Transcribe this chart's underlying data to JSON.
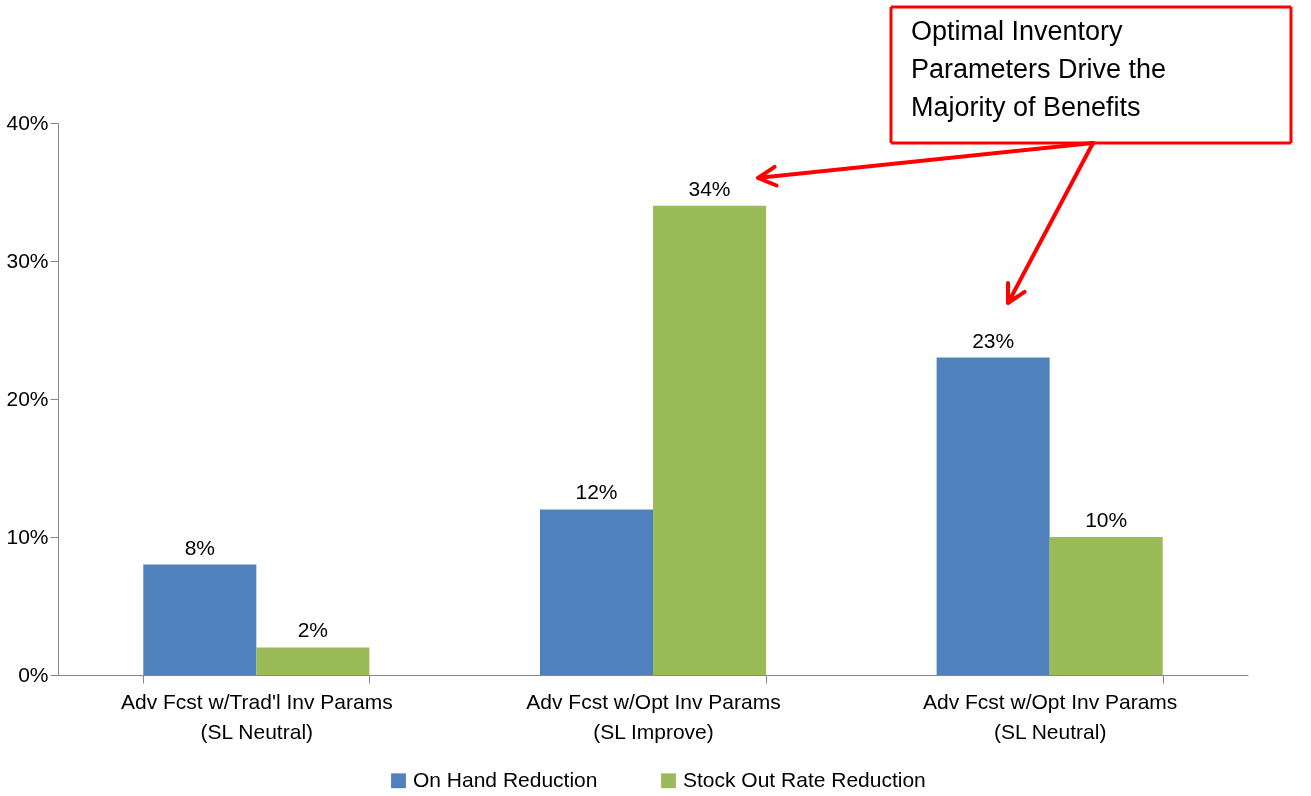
{
  "chart_data": {
    "type": "bar",
    "categories": [
      "Adv Fcst w/Trad'l Inv Params (SL Neutral)",
      "Adv Fcst w/Opt Inv Params (SL Improve)",
      "Adv Fcst w/Opt Inv Params (SL Neutral)"
    ],
    "series": [
      {
        "name": "On Hand Reduction",
        "color": "#4f81bd",
        "values": [
          8,
          12,
          23
        ],
        "value_labels": [
          "8%",
          "12%",
          "23%"
        ]
      },
      {
        "name": "Stock Out Rate Reduction",
        "color": "#9bbb59",
        "values": [
          2,
          34,
          10
        ],
        "value_labels": [
          "2%",
          "34%",
          "10%"
        ]
      }
    ],
    "ylim": [
      0,
      40
    ],
    "yticks": [
      {
        "value": 0,
        "label": "0%"
      },
      {
        "value": 10,
        "label": "10%"
      },
      {
        "value": 20,
        "label": "20%"
      },
      {
        "value": 30,
        "label": "30%"
      },
      {
        "value": 40,
        "label": "40%"
      }
    ],
    "grid": false,
    "legend": "bottom",
    "annotations": [
      "Optimal Inventory Parameters Drive the Majority of Benefits"
    ]
  }
}
